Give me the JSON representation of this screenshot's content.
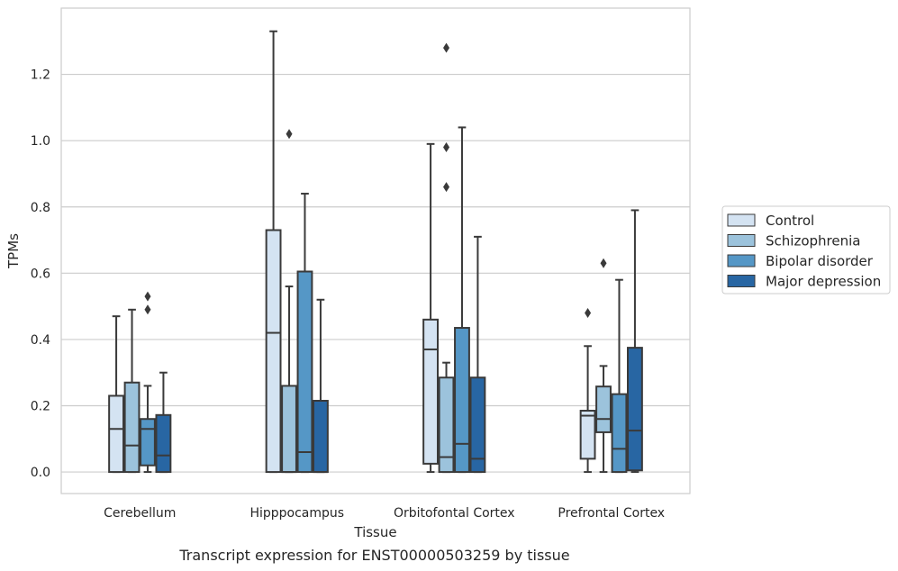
{
  "chart_data": {
    "type": "box",
    "title": "",
    "caption": "Transcript expression for ENST00000503259 by tissue",
    "xlabel": "Tissue",
    "ylabel": "TPMs",
    "ylim": [
      -0.065,
      1.4
    ],
    "yticks": [
      0.0,
      0.2,
      0.4,
      0.6,
      0.8,
      1.0,
      1.2
    ],
    "ytick_labels": [
      "0.0",
      "0.2",
      "0.4",
      "0.6",
      "0.8",
      "1.0",
      "1.2"
    ],
    "grid": "horizontal",
    "legend_position": "right",
    "categories": [
      "Cerebellum",
      "Hipppocampus",
      "Orbitofontal Cortex",
      "Prefrontal Cortex"
    ],
    "series": [
      {
        "name": "Control",
        "color": "#d4e3f2",
        "boxes": [
          {
            "whislo": 0.0,
            "q1": 0.0,
            "med": 0.13,
            "q3": 0.23,
            "whishi": 0.47,
            "fliers": []
          },
          {
            "whislo": 0.0,
            "q1": 0.0,
            "med": 0.42,
            "q3": 0.73,
            "whishi": 1.33,
            "fliers": []
          },
          {
            "whislo": 0.0,
            "q1": 0.025,
            "med": 0.37,
            "q3": 0.46,
            "whishi": 0.99,
            "fliers": []
          },
          {
            "whislo": 0.0,
            "q1": 0.04,
            "med": 0.17,
            "q3": 0.185,
            "whishi": 0.38,
            "fliers": [
              0.48
            ]
          }
        ]
      },
      {
        "name": "Schizophrenia",
        "color": "#9cc3dc",
        "boxes": [
          {
            "whislo": 0.0,
            "q1": 0.0,
            "med": 0.08,
            "q3": 0.27,
            "whishi": 0.49,
            "fliers": []
          },
          {
            "whislo": 0.0,
            "q1": 0.0,
            "med": 0.0,
            "q3": 0.26,
            "whishi": 0.56,
            "fliers": [
              1.02
            ]
          },
          {
            "whislo": 0.0,
            "q1": 0.0,
            "med": 0.045,
            "q3": 0.285,
            "whishi": 0.33,
            "fliers": [
              0.86,
              0.98,
              1.28
            ]
          },
          {
            "whislo": 0.0,
            "q1": 0.12,
            "med": 0.16,
            "q3": 0.258,
            "whishi": 0.32,
            "fliers": [
              0.63
            ]
          }
        ]
      },
      {
        "name": "Bipolar disorder",
        "color": "#5597c6",
        "boxes": [
          {
            "whislo": 0.0,
            "q1": 0.02,
            "med": 0.13,
            "q3": 0.16,
            "whishi": 0.26,
            "fliers": [
              0.49,
              0.53
            ]
          },
          {
            "whislo": 0.0,
            "q1": 0.0,
            "med": 0.06,
            "q3": 0.605,
            "whishi": 0.84,
            "fliers": []
          },
          {
            "whislo": 0.0,
            "q1": 0.0,
            "med": 0.085,
            "q3": 0.435,
            "whishi": 1.04,
            "fliers": []
          },
          {
            "whislo": 0.0,
            "q1": 0.0,
            "med": 0.07,
            "q3": 0.235,
            "whishi": 0.58,
            "fliers": []
          }
        ]
      },
      {
        "name": "Major depression",
        "color": "#2866a3",
        "boxes": [
          {
            "whislo": 0.0,
            "q1": 0.0,
            "med": 0.05,
            "q3": 0.172,
            "whishi": 0.3,
            "fliers": []
          },
          {
            "whislo": 0.0,
            "q1": 0.0,
            "med": 0.0,
            "q3": 0.215,
            "whishi": 0.52,
            "fliers": []
          },
          {
            "whislo": 0.0,
            "q1": 0.0,
            "med": 0.04,
            "q3": 0.285,
            "whishi": 0.71,
            "fliers": []
          },
          {
            "whislo": 0.0,
            "q1": 0.005,
            "med": 0.125,
            "q3": 0.375,
            "whishi": 0.79,
            "fliers": []
          }
        ]
      }
    ]
  }
}
